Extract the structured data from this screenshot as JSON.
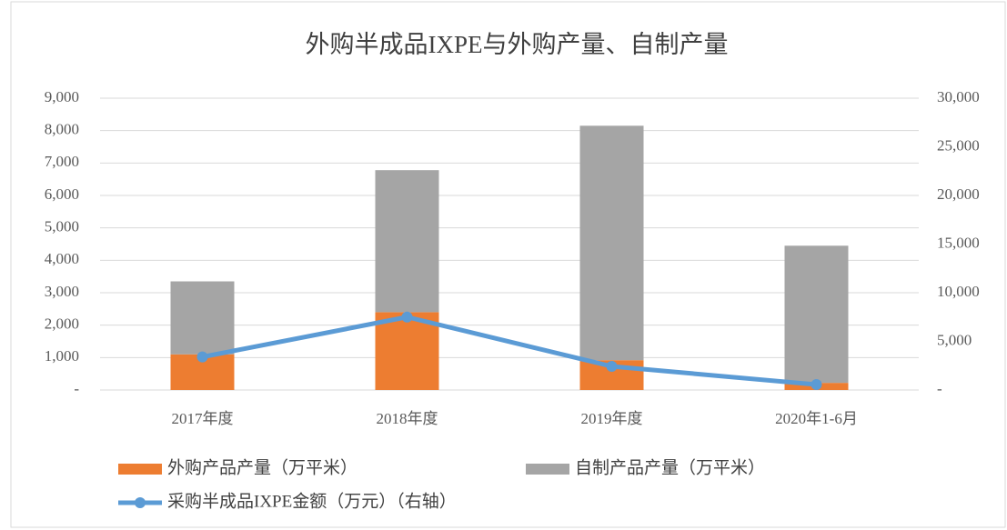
{
  "chart_data": {
    "type": "bar",
    "title": "外购半成品IXPE与外购产量、自制产量",
    "categories": [
      "2017年度",
      "2018年度",
      "2019年度",
      "2020年1-6月"
    ],
    "stacked": true,
    "series": [
      {
        "name": "外购产品产量（万平米）",
        "type": "bar",
        "color": "#ed7d31",
        "values": [
          1100,
          2400,
          920,
          220
        ]
      },
      {
        "name": "自制产品产量（万平米）",
        "type": "bar",
        "color": "#a5a5a5",
        "values": [
          2250,
          4380,
          7230,
          4230
        ]
      },
      {
        "name": "采购半成品IXPE金额（万元）（右轴）",
        "type": "line",
        "axis": "y2",
        "color": "#5b9bd5",
        "values": [
          3400,
          7500,
          2430,
          560
        ]
      }
    ],
    "ylim": [
      0,
      9000
    ],
    "yticks": [
      {
        "value": 0,
        "label": "-"
      },
      {
        "value": 1000,
        "label": "1,000"
      },
      {
        "value": 2000,
        "label": "2,000"
      },
      {
        "value": 3000,
        "label": "3,000"
      },
      {
        "value": 4000,
        "label": "4,000"
      },
      {
        "value": 5000,
        "label": "5,000"
      },
      {
        "value": 6000,
        "label": "6,000"
      },
      {
        "value": 7000,
        "label": "7,000"
      },
      {
        "value": 8000,
        "label": "8,000"
      },
      {
        "value": 9000,
        "label": "9,000"
      }
    ],
    "y2lim": [
      0,
      30000
    ],
    "y2ticks": [
      {
        "value": 0,
        "label": "-"
      },
      {
        "value": 5000,
        "label": "5,000"
      },
      {
        "value": 10000,
        "label": "10,000"
      },
      {
        "value": 15000,
        "label": "15,000"
      },
      {
        "value": 20000,
        "label": "20,000"
      },
      {
        "value": 25000,
        "label": "25,000"
      },
      {
        "value": 30000,
        "label": "30,000"
      }
    ],
    "grid": true
  }
}
